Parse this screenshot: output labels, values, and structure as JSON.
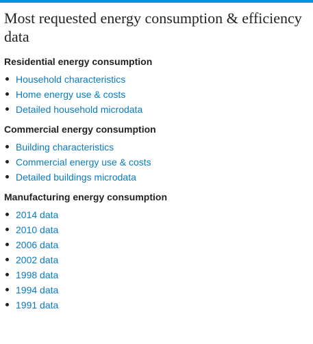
{
  "page": {
    "title": "Most requested energy consumption & efficiency data"
  },
  "sections": [
    {
      "heading": "Residential energy consumption",
      "links": [
        "Household characteristics",
        "Home energy use & costs",
        "Detailed household microdata"
      ]
    },
    {
      "heading": "Commercial energy consumption",
      "links": [
        "Building characteristics",
        "Commercial energy use & costs",
        "Detailed buildings microdata"
      ]
    },
    {
      "heading": "Manufacturing energy consumption",
      "links": [
        "2014 data",
        "2010 data",
        "2006 data",
        "2002 data",
        "1998 data",
        "1994 data",
        "1991 data"
      ]
    }
  ],
  "colors": {
    "accent_bar": "#0096d6",
    "link": "#0a7abf",
    "text": "#222222"
  }
}
